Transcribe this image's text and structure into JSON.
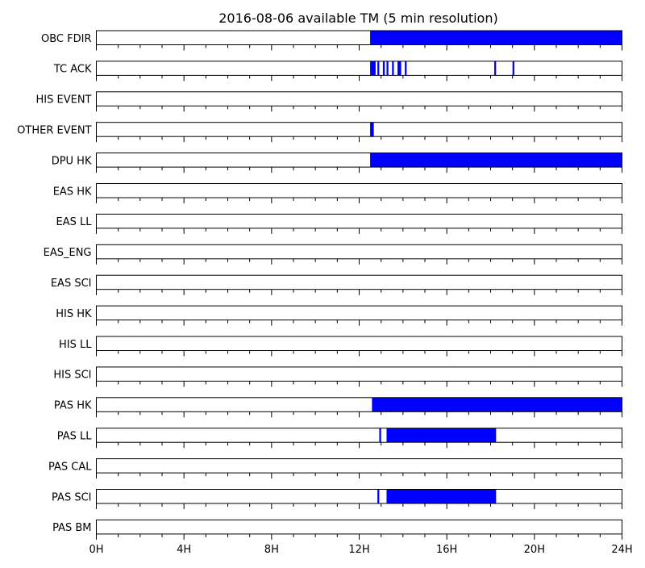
{
  "chart_data": {
    "type": "timeline",
    "title": "2016-08-06 available TM (5 min resolution)",
    "x_unit": "hours",
    "xlim": [
      0,
      24
    ],
    "x_ticks": [
      {
        "value": 0,
        "label": "0H"
      },
      {
        "value": 4,
        "label": "4H"
      },
      {
        "value": 8,
        "label": "8H"
      },
      {
        "value": 12,
        "label": "12H"
      },
      {
        "value": 16,
        "label": "16H"
      },
      {
        "value": 20,
        "label": "20H"
      },
      {
        "value": 24,
        "label": "24H"
      }
    ],
    "bar_color": "#0000ff",
    "rows": [
      {
        "name": "OBC FDIR",
        "intervals": [
          [
            12.5,
            24.0
          ]
        ]
      },
      {
        "name": "TC ACK",
        "intervals": [
          [
            12.5,
            12.75
          ],
          [
            12.833,
            12.917
          ],
          [
            13.083,
            13.167
          ],
          [
            13.25,
            13.333
          ],
          [
            13.5,
            13.583
          ],
          [
            13.75,
            13.917
          ],
          [
            14.083,
            14.167
          ],
          [
            18.167,
            18.25
          ],
          [
            19.0,
            19.083
          ]
        ]
      },
      {
        "name": "HIS EVENT",
        "intervals": []
      },
      {
        "name": "OTHER EVENT",
        "intervals": [
          [
            12.5,
            12.667
          ]
        ]
      },
      {
        "name": "DPU HK",
        "intervals": [
          [
            12.5,
            24.0
          ]
        ]
      },
      {
        "name": "EAS HK",
        "intervals": []
      },
      {
        "name": "EAS LL",
        "intervals": []
      },
      {
        "name": "EAS_ENG",
        "intervals": []
      },
      {
        "name": "EAS SCI",
        "intervals": []
      },
      {
        "name": "HIS HK",
        "intervals": []
      },
      {
        "name": "HIS LL",
        "intervals": []
      },
      {
        "name": "HIS SCI",
        "intervals": []
      },
      {
        "name": "PAS HK",
        "intervals": [
          [
            12.583,
            24.0
          ]
        ]
      },
      {
        "name": "PAS LL",
        "intervals": [
          [
            12.917,
            13.0
          ],
          [
            13.25,
            18.25
          ]
        ]
      },
      {
        "name": "PAS CAL",
        "intervals": []
      },
      {
        "name": "PAS SCI",
        "intervals": [
          [
            12.833,
            12.917
          ],
          [
            13.25,
            18.25
          ]
        ]
      },
      {
        "name": "PAS BM",
        "intervals": []
      }
    ]
  }
}
